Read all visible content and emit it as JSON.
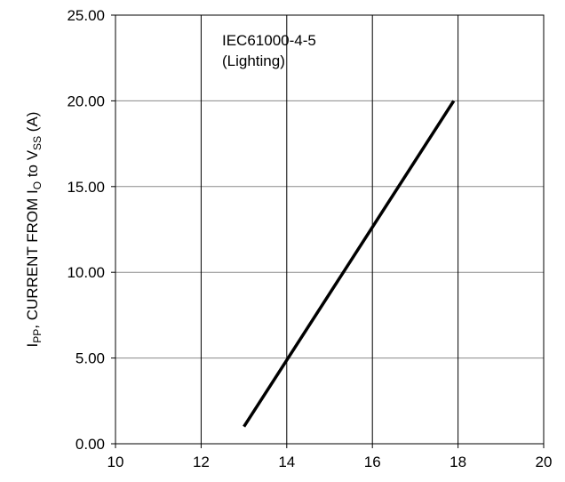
{
  "chart_data": {
    "type": "line",
    "title": "",
    "xlabel": "",
    "ylabel": {
      "parts": [
        {
          "text": "I",
          "sub": false
        },
        {
          "text": "PP",
          "sub": true
        },
        {
          "text": ", CURRENT FROM I",
          "sub": false
        },
        {
          "text": "O",
          "sub": true
        },
        {
          "text": " to V",
          "sub": false
        },
        {
          "text": "SS",
          "sub": true
        },
        {
          "text": " (A)",
          "sub": false
        }
      ]
    },
    "xlim": [
      10,
      20
    ],
    "ylim": [
      0,
      25
    ],
    "x_ticks": [
      10,
      12,
      14,
      16,
      18,
      20
    ],
    "x_tick_labels": [
      "10",
      "12",
      "14",
      "16",
      "18",
      "20"
    ],
    "y_ticks": [
      0,
      5,
      10,
      15,
      20,
      25
    ],
    "y_tick_labels": [
      "0.00",
      "5.00",
      "10.00",
      "15.00",
      "20.00",
      "25.00"
    ],
    "grid": true,
    "annotation": [
      "IEC61000-4-5",
      "(Lighting)"
    ],
    "line_color": "#000000",
    "series": [
      {
        "x": [
          13.0,
          17.9
        ],
        "y": [
          1.0,
          20.0
        ]
      }
    ]
  }
}
